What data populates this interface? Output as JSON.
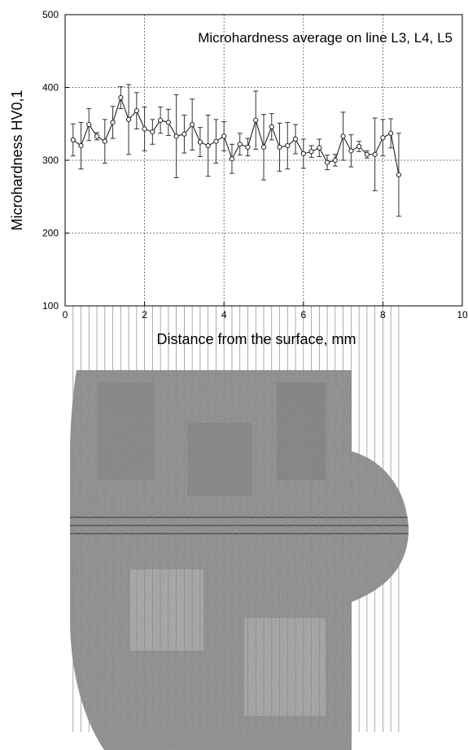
{
  "chart_data": {
    "type": "line",
    "title": "Microhardness average on line L3, L4, L5",
    "xlabel": "Distance from the surface, mm",
    "ylabel": "Microhardness HV0,1",
    "xlim": [
      0,
      10
    ],
    "ylim": [
      100,
      500
    ],
    "x_ticks": [
      "0",
      "2",
      "4",
      "6",
      "8",
      "10"
    ],
    "y_ticks": [
      "100",
      "200",
      "300",
      "400",
      "500"
    ],
    "grid": "dotted",
    "series": [
      {
        "x": [
          0.2,
          0.4,
          0.6,
          0.8,
          1.0,
          1.2,
          1.4,
          1.6,
          1.8,
          2.0,
          2.2,
          2.4,
          2.6,
          2.8,
          3.0,
          3.2,
          3.4,
          3.6,
          3.8,
          4.0,
          4.2,
          4.4,
          4.6,
          4.8,
          5.0,
          5.2,
          5.4,
          5.6,
          5.8,
          6.0,
          6.2,
          6.4,
          6.6,
          6.8,
          7.0,
          7.2,
          7.4,
          7.6,
          7.8,
          8.0,
          8.2,
          8.4
        ],
        "y": [
          328,
          320,
          349,
          333,
          326,
          352,
          386,
          356,
          368,
          343,
          339,
          355,
          352,
          333,
          336,
          349,
          325,
          320,
          326,
          333,
          302,
          322,
          318,
          355,
          318,
          346,
          318,
          320,
          329,
          309,
          312,
          317,
          297,
          300,
          333,
          313,
          319,
          308,
          308,
          331,
          337,
          280
        ],
        "err": [
          22,
          32,
          22,
          5,
          30,
          22,
          15,
          48,
          25,
          30,
          17,
          18,
          18,
          57,
          26,
          35,
          20,
          42,
          30,
          20,
          20,
          15,
          12,
          40,
          45,
          18,
          33,
          32,
          20,
          20,
          8,
          12,
          10,
          8,
          33,
          22,
          7,
          5,
          50,
          25,
          20,
          57
        ]
      }
    ]
  },
  "micrograph": {
    "panel_color": "#7f7f7f",
    "surface_color": "#ffffff"
  }
}
